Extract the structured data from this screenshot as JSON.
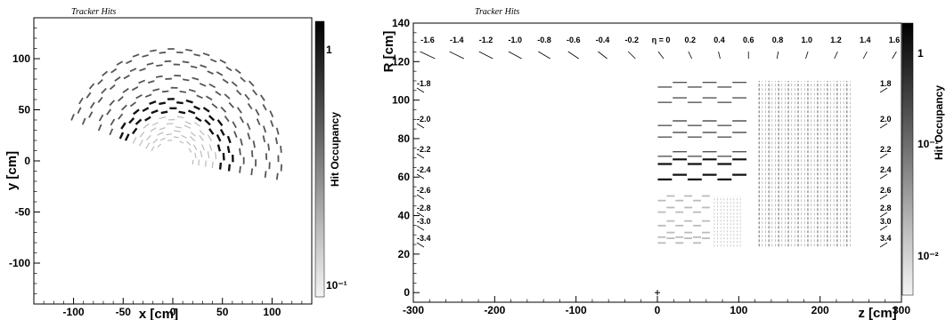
{
  "colors": {
    "frame": "#000000",
    "hit_dark": "#111111",
    "hit_mid": "#555555",
    "hit_light": "#bbbbbb"
  },
  "chart_data": [
    {
      "type": "scatter",
      "title": "Tracker Hits",
      "xlabel": "x [cm]",
      "ylabel": "y [cm]",
      "xlim": [
        -140,
        140
      ],
      "ylim": [
        -140,
        140
      ],
      "x_ticks": [
        "-100",
        "-50",
        "0",
        "50",
        "100"
      ],
      "y_ticks": [
        "-100",
        "-50",
        "0",
        "50",
        "100"
      ],
      "x_tick_values": [
        -100,
        -50,
        0,
        50,
        100
      ],
      "y_tick_values": [
        -100,
        -50,
        0,
        50,
        100
      ],
      "colorbar": {
        "label": "Hit Occupancy",
        "ticks": [
          "1",
          "10⁻¹"
        ],
        "scale": "log"
      },
      "layers": [
        {
          "radius": 22,
          "occupancy": "low"
        },
        {
          "radius": 28,
          "occupancy": "low"
        },
        {
          "radius": 35,
          "occupancy": "low"
        },
        {
          "radius": 42,
          "occupancy": "low"
        },
        {
          "radius": 50,
          "occupancy": "high"
        },
        {
          "radius": 59,
          "occupancy": "high"
        },
        {
          "radius": 70,
          "occupancy": "medium"
        },
        {
          "radius": 82,
          "occupancy": "medium"
        },
        {
          "radius": 96,
          "occupancy": "medium"
        },
        {
          "radius": 108,
          "occupancy": "medium"
        }
      ],
      "phi_range_deg": [
        -10,
        160
      ]
    },
    {
      "type": "scatter",
      "title": "Tracker Hits",
      "xlabel": "z [cm]",
      "ylabel": "R [cm]",
      "xlim": [
        -300,
        300
      ],
      "ylim": [
        -5,
        140
      ],
      "x_ticks": [
        "-300",
        "-200",
        "-100",
        "0",
        "100",
        "200",
        "300"
      ],
      "y_ticks": [
        "0",
        "20",
        "40",
        "60",
        "80",
        "100",
        "120",
        "140"
      ],
      "x_tick_values": [
        -300,
        -200,
        -100,
        0,
        100,
        200,
        300
      ],
      "y_tick_values": [
        0,
        20,
        40,
        60,
        80,
        100,
        120,
        140
      ],
      "colorbar": {
        "label": "Hit Occupancy",
        "ticks": [
          "1",
          "10⁻¹",
          "10⁻²"
        ],
        "scale": "log"
      },
      "eta_top": [
        "-1.6",
        "-1.4",
        "-1.2",
        "-1.0",
        "-0.8",
        "-0.6",
        "-0.4",
        "-0.2",
        "η = 0",
        "0.2",
        "0.4",
        "0.6",
        "0.8",
        "1.0",
        "1.2",
        "1.4",
        "1.6"
      ],
      "eta_left": [
        "-1.8",
        "-2.0",
        "-2.2",
        "-2.4",
        "-2.6",
        "-2.8",
        "-3.0",
        "-3.4"
      ],
      "eta_right": [
        "1.8",
        "2.0",
        "2.2",
        "2.4",
        "2.6",
        "2.8",
        "3.0",
        "3.4"
      ],
      "barrel_layers": [
        {
          "r": 108,
          "z": [
            0,
            110
          ],
          "occupancy": "medium"
        },
        {
          "r": 100,
          "z": [
            0,
            110
          ],
          "occupancy": "medium"
        },
        {
          "r": 88,
          "z": [
            0,
            110
          ],
          "occupancy": "medium"
        },
        {
          "r": 82,
          "z": [
            0,
            110
          ],
          "occupancy": "medium"
        },
        {
          "r": 72,
          "z": [
            0,
            110
          ],
          "occupancy": "medium"
        },
        {
          "r": 68,
          "z": [
            0,
            110
          ],
          "occupancy": "high"
        },
        {
          "r": 60,
          "z": [
            0,
            110
          ],
          "occupancy": "high"
        },
        {
          "r": 49,
          "z": [
            0,
            65
          ],
          "occupancy": "low"
        },
        {
          "r": 43,
          "z": [
            0,
            65
          ],
          "occupancy": "low"
        },
        {
          "r": 36,
          "z": [
            0,
            65
          ],
          "occupancy": "low"
        },
        {
          "r": 30,
          "z": [
            0,
            65
          ],
          "occupancy": "low"
        },
        {
          "r": 27,
          "z": [
            0,
            65
          ],
          "occupancy": "low"
        }
      ],
      "tid_disks": {
        "z": [
          70,
          105
        ],
        "r": [
          24,
          50
        ]
      },
      "tec_disks": {
        "z": [
          125,
          240
        ],
        "r": [
          24,
          110
        ]
      }
    }
  ]
}
